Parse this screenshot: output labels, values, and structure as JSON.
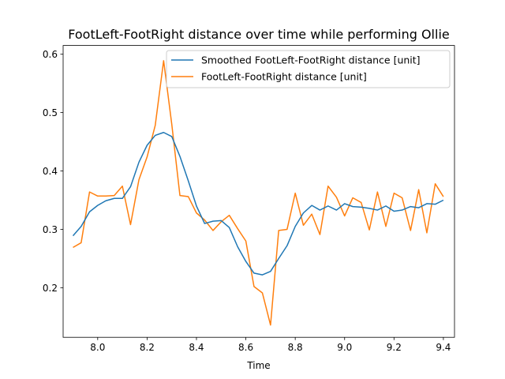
{
  "chart_data": {
    "type": "line",
    "title": "FootLeft-FootRight distance over time while performing Ollie",
    "xlabel": "Time",
    "ylabel": "",
    "xlim": [
      7.86,
      9.445
    ],
    "ylim": [
      0.115,
      0.615
    ],
    "xticks": [
      8.0,
      8.2,
      8.4,
      8.6,
      8.8,
      9.0,
      9.2,
      9.4
    ],
    "xtick_labels": [
      "8.0",
      "8.2",
      "8.4",
      "8.6",
      "8.8",
      "9.0",
      "9.2",
      "9.4"
    ],
    "yticks": [
      0.2,
      0.3,
      0.4,
      0.5,
      0.6
    ],
    "ytick_labels": [
      "0.2",
      "0.3",
      "0.4",
      "0.5",
      "0.6"
    ],
    "grid": false,
    "legend_position": "top-right",
    "series": [
      {
        "name": "Smoothed FootLeft-FootRight distance [unit]",
        "color": "#1f77b4",
        "x": [
          7.9,
          7.933,
          7.967,
          8.0,
          8.033,
          8.067,
          8.1,
          8.133,
          8.167,
          8.2,
          8.233,
          8.267,
          8.3,
          8.333,
          8.367,
          8.4,
          8.433,
          8.467,
          8.5,
          8.533,
          8.567,
          8.6,
          8.633,
          8.667,
          8.7,
          8.733,
          8.767,
          8.8,
          8.833,
          8.867,
          8.9,
          8.933,
          8.967,
          9.0,
          9.033,
          9.067,
          9.1,
          9.133,
          9.167,
          9.2,
          9.233,
          9.267,
          9.3,
          9.333,
          9.367,
          9.4
        ],
        "y": [
          0.289,
          0.305,
          0.33,
          0.341,
          0.349,
          0.353,
          0.353,
          0.373,
          0.415,
          0.444,
          0.461,
          0.466,
          0.459,
          0.425,
          0.383,
          0.34,
          0.31,
          0.314,
          0.315,
          0.303,
          0.27,
          0.245,
          0.225,
          0.222,
          0.228,
          0.25,
          0.272,
          0.305,
          0.328,
          0.341,
          0.333,
          0.34,
          0.333,
          0.344,
          0.339,
          0.338,
          0.336,
          0.333,
          0.34,
          0.331,
          0.333,
          0.339,
          0.337,
          0.344,
          0.343,
          0.35
        ]
      },
      {
        "name": "FootLeft-FootRight distance [unit]",
        "color": "#ff7f0e",
        "x": [
          7.9,
          7.933,
          7.967,
          8.0,
          8.033,
          8.067,
          8.1,
          8.133,
          8.167,
          8.2,
          8.233,
          8.267,
          8.3,
          8.333,
          8.367,
          8.4,
          8.433,
          8.467,
          8.5,
          8.533,
          8.567,
          8.6,
          8.633,
          8.667,
          8.7,
          8.733,
          8.767,
          8.8,
          8.833,
          8.867,
          8.9,
          8.933,
          8.967,
          9.0,
          9.033,
          9.067,
          9.1,
          9.133,
          9.167,
          9.2,
          9.233,
          9.267,
          9.3,
          9.333,
          9.367,
          9.4
        ],
        "y": [
          0.269,
          0.277,
          0.364,
          0.357,
          0.357,
          0.358,
          0.374,
          0.308,
          0.385,
          0.424,
          0.478,
          0.589,
          0.48,
          0.358,
          0.356,
          0.328,
          0.316,
          0.298,
          0.313,
          0.324,
          0.301,
          0.28,
          0.202,
          0.191,
          0.136,
          0.298,
          0.3,
          0.362,
          0.307,
          0.326,
          0.291,
          0.374,
          0.355,
          0.323,
          0.354,
          0.346,
          0.299,
          0.364,
          0.305,
          0.362,
          0.354,
          0.298,
          0.368,
          0.294,
          0.378,
          0.356
        ]
      }
    ]
  }
}
